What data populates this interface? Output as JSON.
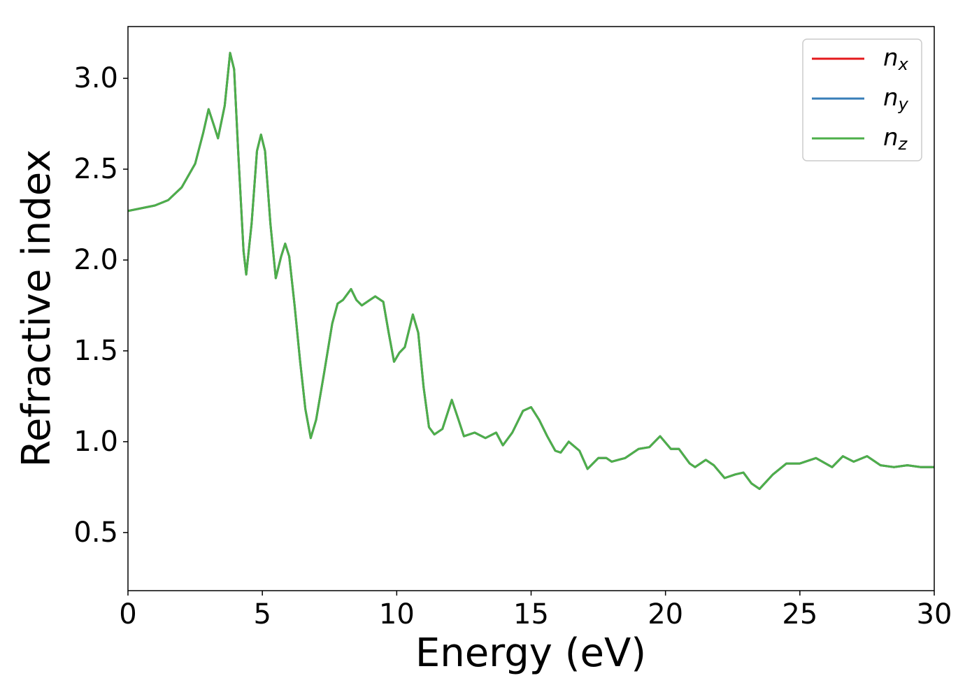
{
  "chart_data": {
    "type": "line",
    "xlabel": "Energy (eV)",
    "ylabel": "Refractive index",
    "x": [
      0,
      1,
      1.5,
      2,
      2.5,
      2.8,
      3.0,
      3.2,
      3.35,
      3.6,
      3.8,
      3.95,
      4.1,
      4.3,
      4.4,
      4.6,
      4.8,
      4.95,
      5.1,
      5.3,
      5.5,
      5.7,
      5.85,
      6.0,
      6.2,
      6.4,
      6.6,
      6.8,
      7.0,
      7.3,
      7.6,
      7.8,
      8.0,
      8.3,
      8.5,
      8.7,
      9.0,
      9.2,
      9.5,
      9.7,
      9.9,
      10.1,
      10.3,
      10.6,
      10.8,
      11.0,
      11.2,
      11.4,
      11.7,
      12.05,
      12.3,
      12.5,
      12.9,
      13.3,
      13.7,
      13.95,
      14.3,
      14.7,
      15.0,
      15.3,
      15.6,
      15.9,
      16.1,
      16.4,
      16.8,
      17.1,
      17.5,
      17.8,
      18.0,
      18.5,
      19.0,
      19.4,
      19.8,
      20.2,
      20.5,
      20.9,
      21.1,
      21.5,
      21.8,
      22.2,
      22.6,
      22.9,
      23.2,
      23.5,
      24.0,
      24.5,
      25.0,
      25.6,
      26.2,
      26.6,
      27.0,
      27.5,
      28.0,
      28.5,
      29.0,
      29.5,
      30.0
    ],
    "series": [
      {
        "name": "nx",
        "color": "#e41a1c",
        "values": [
          2.27,
          2.3,
          2.33,
          2.4,
          2.53,
          2.7,
          2.83,
          2.74,
          2.67,
          2.85,
          3.14,
          3.05,
          2.6,
          2.05,
          1.92,
          2.2,
          2.6,
          2.69,
          2.6,
          2.2,
          1.9,
          2.02,
          2.09,
          2.02,
          1.75,
          1.45,
          1.18,
          1.02,
          1.12,
          1.38,
          1.65,
          1.76,
          1.78,
          1.84,
          1.78,
          1.75,
          1.78,
          1.8,
          1.77,
          1.6,
          1.44,
          1.49,
          1.52,
          1.7,
          1.6,
          1.3,
          1.08,
          1.04,
          1.07,
          1.23,
          1.12,
          1.03,
          1.05,
          1.02,
          1.05,
          0.98,
          1.05,
          1.17,
          1.19,
          1.12,
          1.03,
          0.95,
          0.94,
          1.0,
          0.95,
          0.85,
          0.91,
          0.91,
          0.89,
          0.91,
          0.96,
          0.97,
          1.03,
          0.96,
          0.96,
          0.88,
          0.86,
          0.9,
          0.87,
          0.8,
          0.82,
          0.83,
          0.77,
          0.74,
          0.82,
          0.88,
          0.88,
          0.91,
          0.86,
          0.92,
          0.89,
          0.92,
          0.87,
          0.86,
          0.87,
          0.86,
          0.86
        ]
      },
      {
        "name": "ny",
        "color": "#377eb8",
        "values": [
          2.27,
          2.3,
          2.33,
          2.4,
          2.53,
          2.7,
          2.83,
          2.74,
          2.67,
          2.85,
          3.14,
          3.05,
          2.6,
          2.05,
          1.92,
          2.2,
          2.6,
          2.69,
          2.6,
          2.2,
          1.9,
          2.02,
          2.09,
          2.02,
          1.75,
          1.45,
          1.18,
          1.02,
          1.12,
          1.38,
          1.65,
          1.76,
          1.78,
          1.84,
          1.78,
          1.75,
          1.78,
          1.8,
          1.77,
          1.6,
          1.44,
          1.49,
          1.52,
          1.7,
          1.6,
          1.3,
          1.08,
          1.04,
          1.07,
          1.23,
          1.12,
          1.03,
          1.05,
          1.02,
          1.05,
          0.98,
          1.05,
          1.17,
          1.19,
          1.12,
          1.03,
          0.95,
          0.94,
          1.0,
          0.95,
          0.85,
          0.91,
          0.91,
          0.89,
          0.91,
          0.96,
          0.97,
          1.03,
          0.96,
          0.96,
          0.88,
          0.86,
          0.9,
          0.87,
          0.8,
          0.82,
          0.83,
          0.77,
          0.74,
          0.82,
          0.88,
          0.88,
          0.91,
          0.86,
          0.92,
          0.89,
          0.92,
          0.87,
          0.86,
          0.87,
          0.86,
          0.86
        ]
      },
      {
        "name": "nz",
        "color": "#4daf4a",
        "values": [
          2.27,
          2.3,
          2.33,
          2.4,
          2.53,
          2.7,
          2.83,
          2.74,
          2.67,
          2.85,
          3.14,
          3.05,
          2.6,
          2.05,
          1.92,
          2.2,
          2.6,
          2.69,
          2.6,
          2.2,
          1.9,
          2.02,
          2.09,
          2.02,
          1.75,
          1.45,
          1.18,
          1.02,
          1.12,
          1.38,
          1.65,
          1.76,
          1.78,
          1.84,
          1.78,
          1.75,
          1.78,
          1.8,
          1.77,
          1.6,
          1.44,
          1.49,
          1.52,
          1.7,
          1.6,
          1.3,
          1.08,
          1.04,
          1.07,
          1.23,
          1.12,
          1.03,
          1.05,
          1.02,
          1.05,
          0.98,
          1.05,
          1.17,
          1.19,
          1.12,
          1.03,
          0.95,
          0.94,
          1.0,
          0.95,
          0.85,
          0.91,
          0.91,
          0.89,
          0.91,
          0.96,
          0.97,
          1.03,
          0.96,
          0.96,
          0.88,
          0.86,
          0.9,
          0.87,
          0.8,
          0.82,
          0.83,
          0.77,
          0.74,
          0.82,
          0.88,
          0.88,
          0.91,
          0.86,
          0.92,
          0.89,
          0.92,
          0.87,
          0.86,
          0.87,
          0.86,
          0.86
        ]
      }
    ],
    "xlim": [
      0,
      30
    ],
    "xticks": [
      0,
      5,
      10,
      15,
      20,
      25,
      30
    ],
    "ylim": [
      0.18,
      3.285
    ],
    "yticks": [
      0.5,
      {
        "value": 1,
        "label": "1.0"
      },
      1.5,
      {
        "value": 2,
        "label": "2.0"
      },
      2.5,
      {
        "value": 3,
        "label": "3.0"
      }
    ],
    "grid": false,
    "legend": "upper right"
  }
}
